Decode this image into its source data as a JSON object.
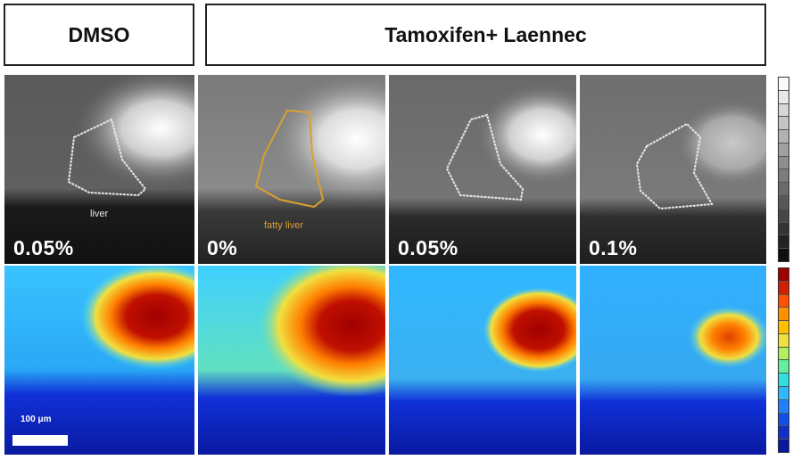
{
  "headers": {
    "dmso": "DMSO",
    "tamoxifen": "Tamoxifen+ Laennec"
  },
  "panels": [
    {
      "concentration": "0.05%",
      "region_label": "liver",
      "region_color": "#e8e8e8"
    },
    {
      "concentration": "0%",
      "region_label": "fatty liver",
      "region_color": "#d9a030"
    },
    {
      "concentration": "0.05%",
      "region_label": "",
      "region_color": "#e8e8e8"
    },
    {
      "concentration": "0.1%",
      "region_label": "",
      "region_color": "#e8e8e8"
    }
  ],
  "scale_bar": {
    "label": "100 μm"
  },
  "colors": {
    "heatmap_background": "#0d1fa8",
    "heatmap_hot": "#a00000",
    "grayscale_bright": "#ffffff"
  }
}
